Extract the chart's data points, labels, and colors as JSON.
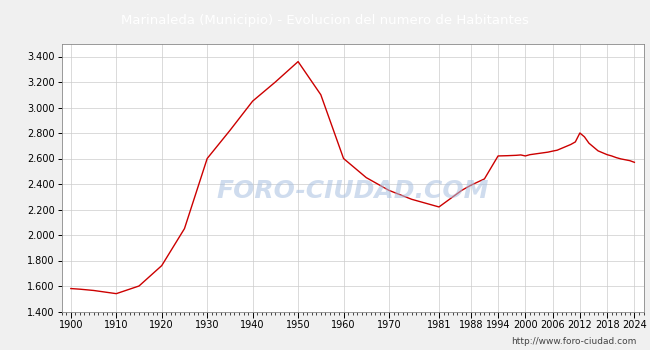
{
  "title": "Marinaleda (Municipio) - Evolucion del numero de Habitantes",
  "title_bg": "#4472c4",
  "title_color": "white",
  "bg_color": "#f0f0f0",
  "plot_bg": "#ffffff",
  "line_color": "#cc0000",
  "watermark": "FORO-CIUDAD.COM",
  "url": "http://www.foro-ciudad.com",
  "ylim": [
    1400,
    3500
  ],
  "yticks": [
    1400,
    1600,
    1800,
    2000,
    2200,
    2400,
    2600,
    2800,
    3000,
    3200,
    3400
  ],
  "ytick_labels": [
    "1.400",
    "1.600",
    "1.800",
    "2.000",
    "2.200",
    "2.400",
    "2.600",
    "2.800",
    "3.000",
    "3.200",
    "3.400"
  ],
  "xtick_labels": [
    "1900",
    "1910",
    "1920",
    "1930",
    "1940",
    "1950",
    "1960",
    "1970",
    "1981",
    "1988",
    "1994",
    "2000",
    "2006",
    "2012",
    "2018",
    "2024"
  ],
  "years": [
    1900,
    1902,
    1905,
    1910,
    1915,
    1920,
    1925,
    1930,
    1935,
    1940,
    1945,
    1950,
    1955,
    1960,
    1965,
    1970,
    1975,
    1981,
    1986,
    1988,
    1991,
    1994,
    1996,
    1998,
    1999,
    2000,
    2001,
    2002,
    2003,
    2004,
    2005,
    2006,
    2007,
    2008,
    2009,
    2010,
    2011,
    2012,
    2013,
    2014,
    2015,
    2016,
    2017,
    2018,
    2019,
    2020,
    2021,
    2022,
    2023,
    2024
  ],
  "population": [
    1580,
    1575,
    1565,
    1540,
    1600,
    1760,
    2050,
    2600,
    2820,
    3050,
    3200,
    3360,
    3100,
    2600,
    2450,
    2350,
    2280,
    2220,
    2350,
    2390,
    2440,
    2620,
    2622,
    2625,
    2628,
    2620,
    2630,
    2635,
    2640,
    2645,
    2650,
    2658,
    2665,
    2680,
    2695,
    2710,
    2730,
    2800,
    2770,
    2720,
    2690,
    2660,
    2645,
    2630,
    2620,
    2607,
    2597,
    2590,
    2583,
    2570
  ]
}
